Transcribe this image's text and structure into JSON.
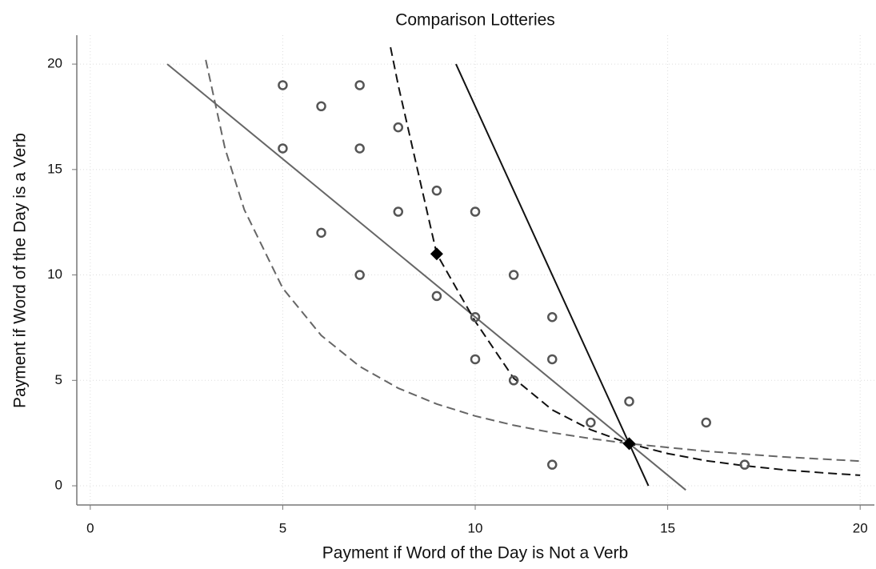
{
  "chart_data": {
    "type": "scatter",
    "title": "Comparison Lotteries",
    "x_label": "Payment if Word of the Day is Not a Verb",
    "y_label": "Payment if Word of the Day is a Verb",
    "xlim": [
      -0.35,
      20.37
    ],
    "ylim": [
      -0.91,
      21.37
    ],
    "xticks": [
      0,
      5,
      10,
      15,
      20
    ],
    "yticks": [
      0,
      5,
      10,
      15,
      20
    ],
    "grid": true,
    "series": [
      {
        "kind": "line",
        "color": "#666666",
        "dash": "solid",
        "x": [
          2,
          15.47
        ],
        "values": [
          20,
          -0.2
        ]
      },
      {
        "kind": "line",
        "color": "#111111",
        "dash": "solid",
        "x": [
          9.5,
          14.5
        ],
        "values": [
          20,
          0
        ]
      },
      {
        "kind": "line",
        "color": "#111111",
        "dash": "dashed",
        "x": [
          7.8,
          8,
          8.5,
          9,
          10,
          11,
          12,
          13,
          14,
          15,
          16,
          17,
          18,
          19,
          20
        ],
        "values": [
          20.8,
          19,
          15,
          11,
          7.8,
          5.1,
          3.6,
          2.66,
          2,
          1.53,
          1.19,
          0.95,
          0.76,
          0.62,
          0.5
        ]
      },
      {
        "kind": "line",
        "color": "#666666",
        "dash": "dashed",
        "x": [
          3,
          3.5,
          4,
          5,
          6,
          7,
          8,
          9,
          10,
          11,
          12,
          13,
          14,
          16,
          18,
          20
        ],
        "values": [
          20.2,
          16,
          13.1,
          9.37,
          7.13,
          5.66,
          4.63,
          3.88,
          3.31,
          2.87,
          2.52,
          2.24,
          2,
          1.64,
          1.37,
          1.17
        ]
      },
      {
        "kind": "points",
        "marker": "circle",
        "color": "#555555",
        "x": [
          5,
          5,
          6,
          7,
          7,
          6,
          7,
          8,
          8,
          9,
          9,
          10,
          10,
          10,
          11,
          11,
          12,
          12,
          12,
          13,
          14,
          16,
          17
        ],
        "values": [
          19,
          16,
          18,
          19,
          16,
          12,
          10,
          17,
          13,
          14,
          9,
          13,
          8,
          6,
          10,
          5,
          8,
          6,
          1,
          3,
          4,
          3,
          1
        ]
      },
      {
        "kind": "points",
        "marker": "diamond",
        "color": "#000000",
        "x": [
          9,
          14
        ],
        "values": [
          11,
          2
        ]
      }
    ]
  }
}
